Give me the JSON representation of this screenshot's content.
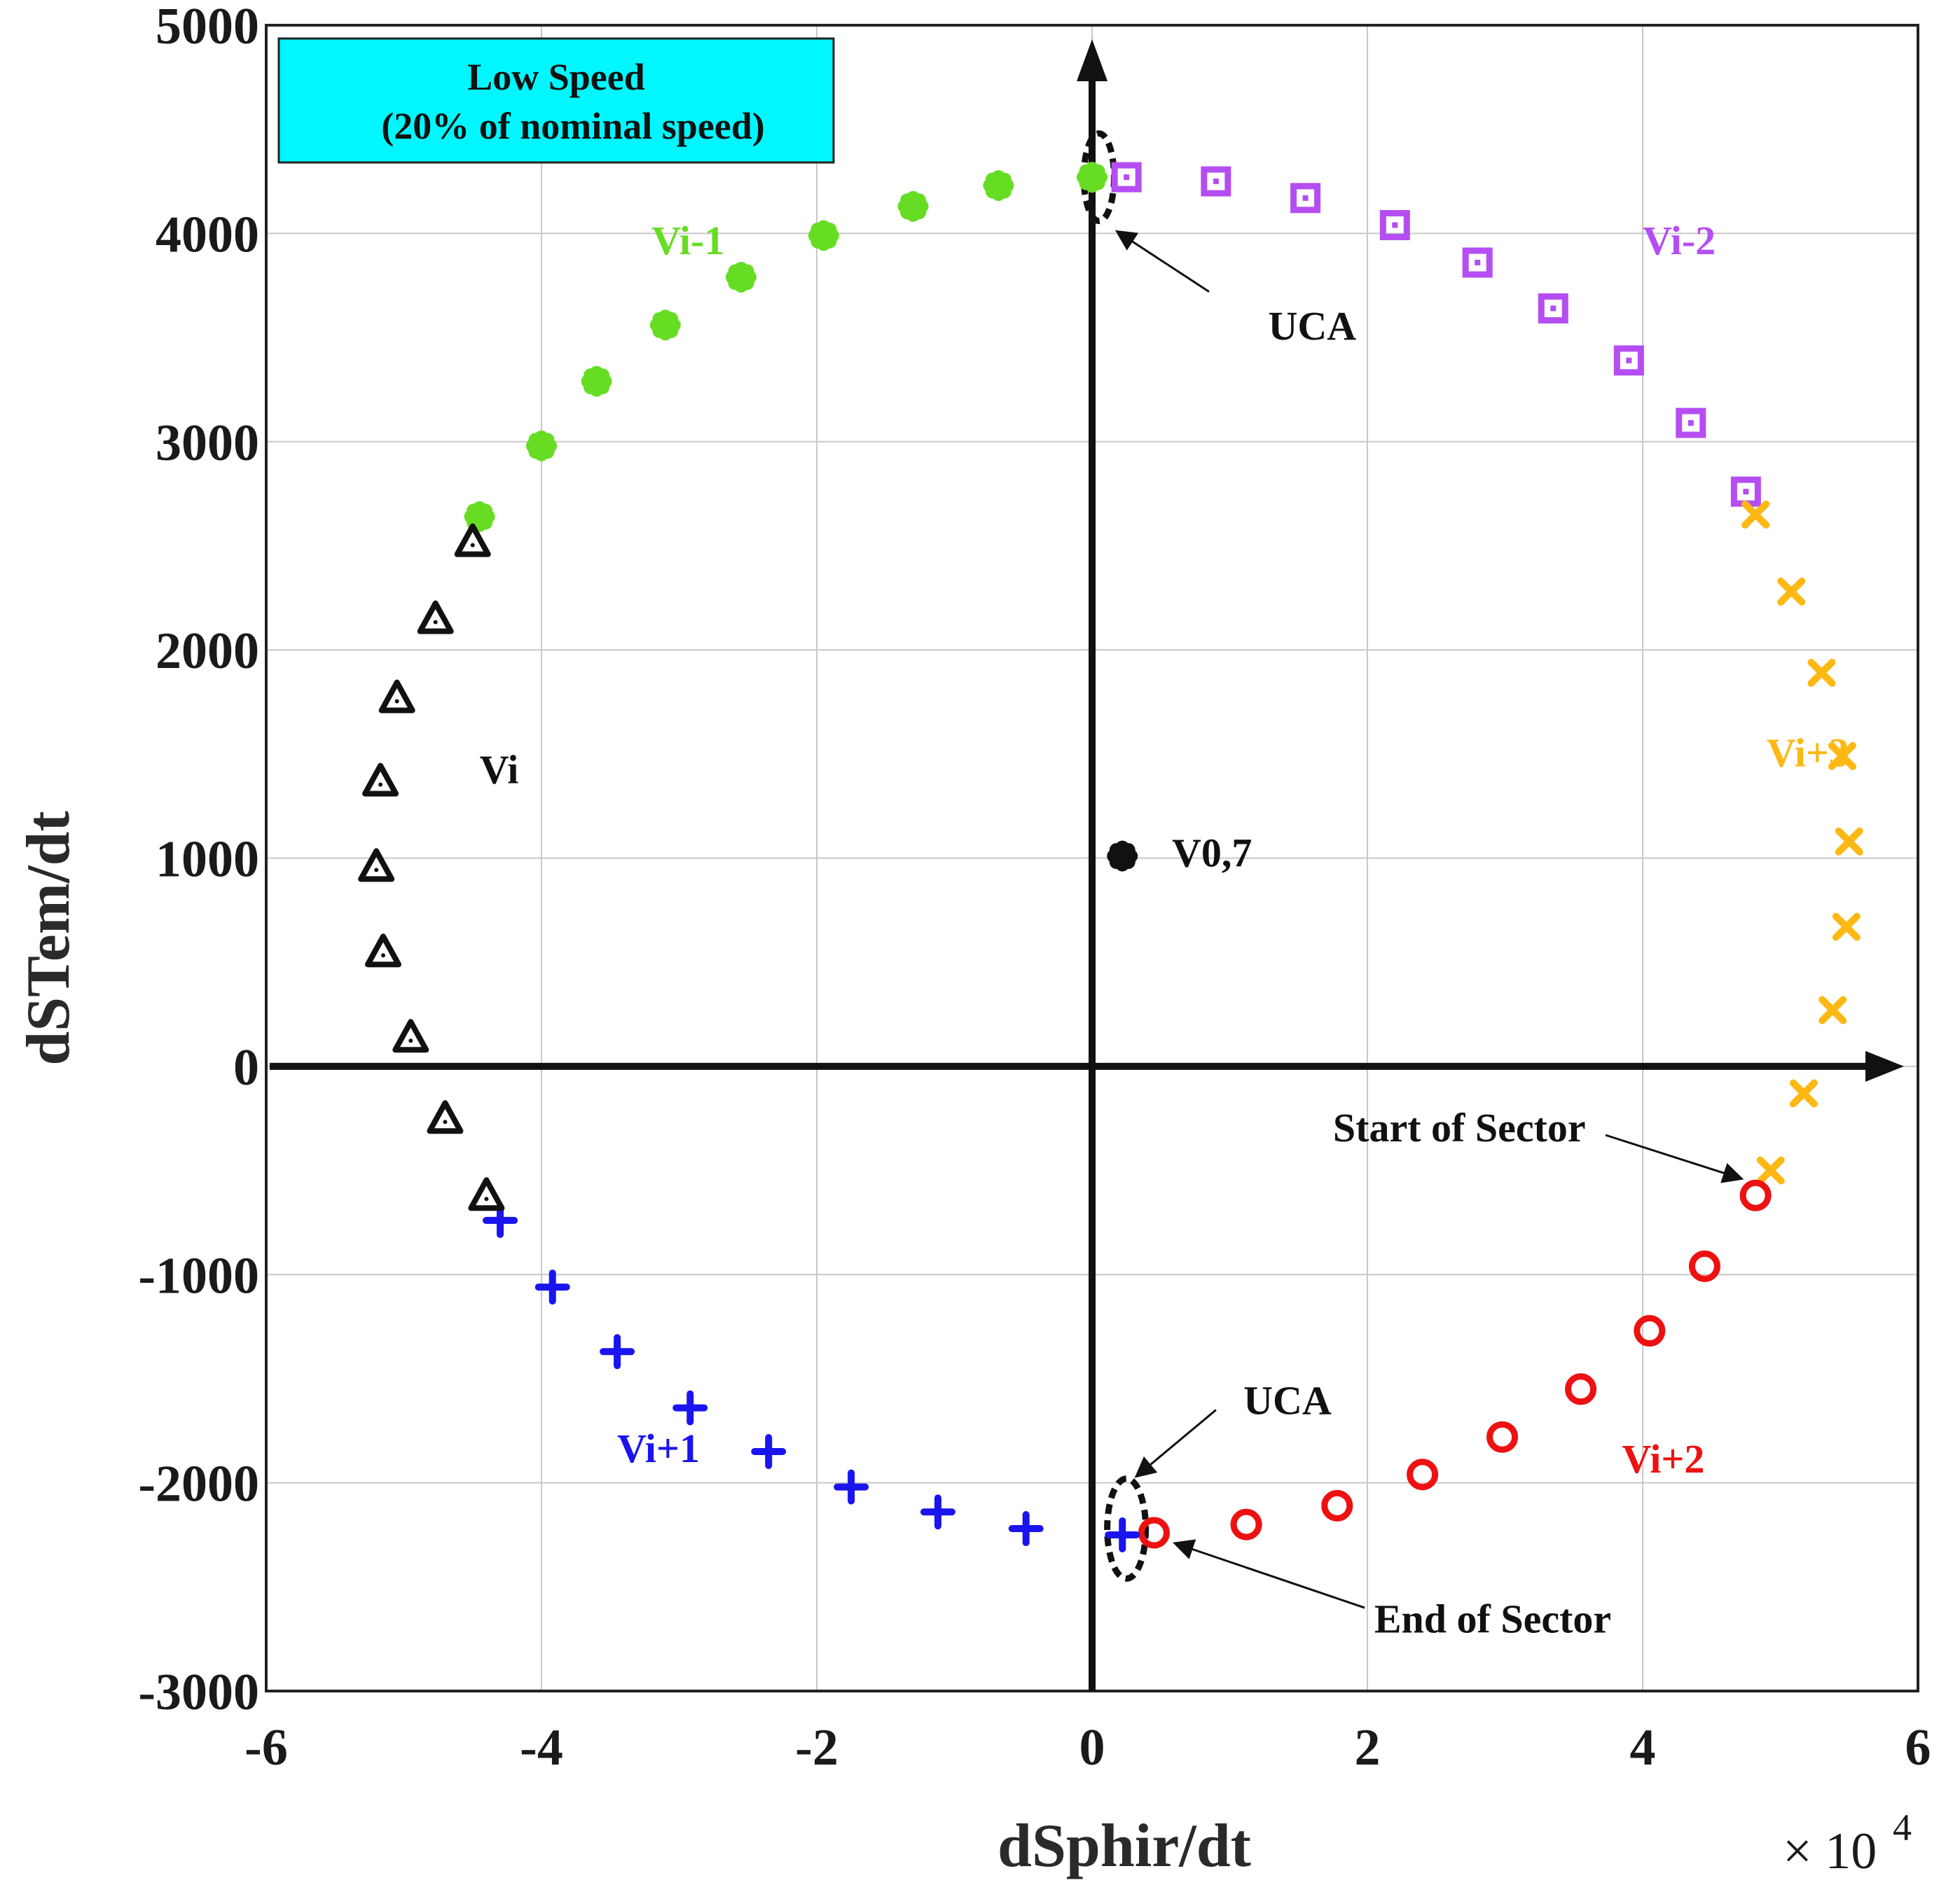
{
  "chart_data": {
    "type": "scatter",
    "xlabel": "dSphir/dt",
    "ylabel": "dSTem/dt",
    "x_multiplier": "× 10",
    "x_multiplier_exp": "4",
    "xlim": [
      -6,
      6
    ],
    "ylim": [
      -3000,
      5000
    ],
    "xticks": [
      "-6",
      "-4",
      "-2",
      "0",
      "2",
      "4",
      "6"
    ],
    "yticks": [
      "5000",
      "4000",
      "3000",
      "2000",
      "1000",
      "0",
      "-1000",
      "-2000",
      "-3000"
    ],
    "grid": true,
    "title_box": {
      "line1": "Low Speed",
      "line2": "(20% of nominal speed)",
      "color": "#00f7ff"
    },
    "series": [
      {
        "name": "Vi-1",
        "color": "#66dd22",
        "marker": "flower",
        "x": [
          -4.45,
          -4.0,
          -3.6,
          -3.1,
          -2.55,
          -1.95,
          -1.3,
          -0.68,
          0.0
        ],
        "y": [
          2640,
          2980,
          3290,
          3560,
          3790,
          3990,
          4130,
          4230,
          4270
        ]
      },
      {
        "name": "Vi-2",
        "color": "#b54ef2",
        "marker": "square",
        "x": [
          0.25,
          0.9,
          1.55,
          2.2,
          2.8,
          3.35,
          3.9,
          4.35,
          4.75
        ],
        "y": [
          4270,
          4250,
          4170,
          4040,
          3860,
          3640,
          3390,
          3090,
          2760
        ]
      },
      {
        "name": "Vi+3",
        "color": "#fdb813",
        "marker": "x",
        "x": [
          4.82,
          5.08,
          5.3,
          5.45,
          5.5,
          5.48,
          5.38,
          5.17,
          4.93
        ],
        "y": [
          2650,
          2280,
          1890,
          1490,
          1080,
          670,
          270,
          -130,
          -500
        ]
      },
      {
        "name": "Vi+2",
        "color": "#ee1111",
        "marker": "circle",
        "x": [
          4.82,
          4.45,
          4.05,
          3.55,
          2.98,
          2.4,
          1.78,
          1.12,
          0.45
        ],
        "y": [
          -620,
          -960,
          -1270,
          -1550,
          -1780,
          -1960,
          -2110,
          -2200,
          -2240
        ]
      },
      {
        "name": "Vi+1",
        "color": "#1a14ee",
        "marker": "plus",
        "x": [
          -4.3,
          -3.92,
          -3.45,
          -2.92,
          -2.35,
          -1.75,
          -1.12,
          -0.48,
          0.22
        ],
        "y": [
          -740,
          -1060,
          -1370,
          -1640,
          -1850,
          -2020,
          -2140,
          -2220,
          -2250
        ]
      },
      {
        "name": "Vi",
        "color": "#111111",
        "marker": "triangle",
        "x": [
          -4.5,
          -4.77,
          -5.05,
          -5.17,
          -5.2,
          -5.15,
          -4.95,
          -4.7,
          -4.4
        ],
        "y": [
          2520,
          2150,
          1770,
          1370,
          960,
          550,
          140,
          -250,
          -620
        ]
      },
      {
        "name": "V0,7",
        "color": "#111111",
        "marker": "flower",
        "x": [
          0.22
        ],
        "y": [
          1010
        ]
      }
    ],
    "series_labels": [
      {
        "text": "Vi-1",
        "color": "#66dd22",
        "x": -3.2,
        "y": 3900
      },
      {
        "text": "Vi-2",
        "color": "#b54ef2",
        "x": 4.0,
        "y": 3900
      },
      {
        "text": "Vi+3",
        "color": "#fdb813",
        "x": 4.9,
        "y": 1440
      },
      {
        "text": "Vi+2",
        "color": "#ee1111",
        "x": 3.85,
        "y": -1950
      },
      {
        "text": "Vi+1",
        "color": "#1a14ee",
        "x": -3.45,
        "y": -1900
      },
      {
        "text": "Vi",
        "color": "#111111",
        "x": -4.45,
        "y": 1360
      },
      {
        "text": "V0,7",
        "color": "#111111",
        "x": 0.58,
        "y": 960
      }
    ],
    "annotations": [
      {
        "text": "UCA",
        "x": 1.28,
        "y": 3490,
        "arrow_from": [
          0.85,
          3720
        ],
        "arrow_to": [
          0.18,
          4010
        ]
      },
      {
        "text": "UCA",
        "x": 1.1,
        "y": -1670,
        "arrow_from": [
          0.9,
          -1650
        ],
        "arrow_to": [
          0.32,
          -1970
        ]
      },
      {
        "text": "End of Sector",
        "x": 2.05,
        "y": -2720,
        "arrow_from": [
          1.98,
          -2600
        ],
        "arrow_to": [
          0.6,
          -2290
        ]
      },
      {
        "text": "Start of Sector",
        "x": 1.75,
        "y": -360,
        "arrow_from": [
          3.73,
          -330
        ],
        "arrow_to": [
          4.72,
          -540
        ]
      }
    ],
    "highlight_ellipses": [
      {
        "x": 0.05,
        "y": 4270,
        "rx": 0.11,
        "ry": 210
      },
      {
        "x": 0.25,
        "y": -2220,
        "rx": 0.14,
        "ry": 240
      }
    ]
  }
}
